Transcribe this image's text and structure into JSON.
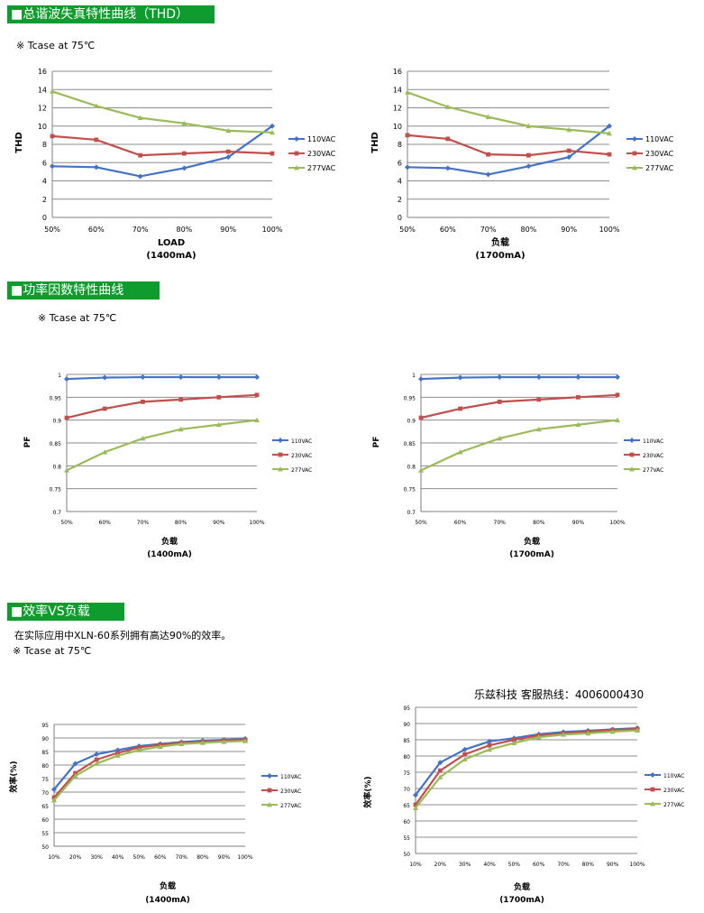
{
  "sections": {
    "thd": {
      "header": "■总谐波失真特性曲线（THD）",
      "note": "※ Tcase at 75℃"
    },
    "pf": {
      "header": "■功率因数特性曲线",
      "note": "※ Tcase at 75℃"
    },
    "eff": {
      "header": "■效率VS负载",
      "description": "在实际应用中XLN-60系列拥有高达90%的效率。",
      "note": "※ Tcase at 75℃"
    }
  },
  "hotline": "乐兹科技 客服热线：4006000430",
  "colors": {
    "header_bg": "#0e9c2e",
    "s110": "#4472c4",
    "s230": "#c0504d",
    "s277": "#9bbb59"
  },
  "chart_data": [
    {
      "id": "thd-1400",
      "type": "line",
      "ylabel": "THD",
      "xlabel": "LOAD",
      "sublabel": "(1400mA)",
      "categories": [
        "50%",
        "60%",
        "70%",
        "80%",
        "90%",
        "100%"
      ],
      "ylim": [
        0,
        16
      ],
      "yticks": [
        0,
        2,
        4,
        6,
        8,
        10,
        12,
        14,
        16
      ],
      "ytick_labels": [
        "0",
        "2",
        "4",
        "6",
        "8",
        "10",
        "12",
        "14",
        "16"
      ],
      "grid": true,
      "legend": "right",
      "series": [
        {
          "name": "110VAC",
          "marker": "diamond",
          "values": [
            5.6,
            5.5,
            4.5,
            5.4,
            6.6,
            10.0
          ]
        },
        {
          "name": "230VAC",
          "marker": "square",
          "values": [
            8.9,
            8.5,
            6.8,
            7.0,
            7.2,
            7.0
          ]
        },
        {
          "name": "277VAC",
          "marker": "triangle",
          "values": [
            13.8,
            12.2,
            10.9,
            10.3,
            9.5,
            9.3
          ]
        }
      ]
    },
    {
      "id": "thd-1700",
      "type": "line",
      "ylabel": "THD",
      "xlabel": "负载",
      "sublabel": "(1700mA)",
      "categories": [
        "50%",
        "60%",
        "70%",
        "80%",
        "90%",
        "100%"
      ],
      "ylim": [
        0,
        16
      ],
      "yticks": [
        0,
        2,
        4,
        6,
        8,
        10,
        12,
        14,
        16
      ],
      "ytick_labels": [
        "0",
        "2",
        "4",
        "6",
        "8",
        "10",
        "12",
        "14",
        "16"
      ],
      "grid": true,
      "legend": "right",
      "series": [
        {
          "name": "110VAC",
          "marker": "diamond",
          "values": [
            5.5,
            5.4,
            4.7,
            5.6,
            6.6,
            10.0
          ]
        },
        {
          "name": "230VAC",
          "marker": "square",
          "values": [
            9.0,
            8.6,
            6.9,
            6.8,
            7.3,
            6.9
          ]
        },
        {
          "name": "277VAC",
          "marker": "triangle",
          "values": [
            13.7,
            12.1,
            11.0,
            10.0,
            9.6,
            9.2
          ]
        }
      ]
    },
    {
      "id": "pf-1400",
      "type": "line",
      "ylabel": "PF",
      "xlabel": "负载",
      "sublabel": "(1400mA)",
      "categories": [
        "50%",
        "60%",
        "70%",
        "80%",
        "90%",
        "100%"
      ],
      "ylim": [
        0.7,
        1.0
      ],
      "yticks": [
        0.7,
        0.75,
        0.8,
        0.85,
        0.9,
        0.95,
        1.0
      ],
      "ytick_labels": [
        "0.7",
        "0.75",
        "0.8",
        "0.85",
        "0.9",
        "0.95",
        "1"
      ],
      "grid": true,
      "legend": "right",
      "series": [
        {
          "name": "110VAC",
          "marker": "diamond",
          "values": [
            0.99,
            0.993,
            0.994,
            0.994,
            0.994,
            0.994
          ]
        },
        {
          "name": "230VAC",
          "marker": "square",
          "values": [
            0.905,
            0.925,
            0.94,
            0.945,
            0.95,
            0.955
          ]
        },
        {
          "name": "277VAC",
          "marker": "triangle",
          "values": [
            0.79,
            0.83,
            0.86,
            0.88,
            0.89,
            0.9
          ]
        }
      ]
    },
    {
      "id": "pf-1700",
      "type": "line",
      "ylabel": "PF",
      "xlabel": "负载",
      "sublabel": "(1700mA)",
      "categories": [
        "50%",
        "60%",
        "70%",
        "80%",
        "90%",
        "100%"
      ],
      "ylim": [
        0.7,
        1.0
      ],
      "yticks": [
        0.7,
        0.75,
        0.8,
        0.85,
        0.9,
        0.95,
        1.0
      ],
      "ytick_labels": [
        "0.7",
        "0.75",
        "0.8",
        "0.85",
        "0.9",
        "0.95",
        "1"
      ],
      "grid": true,
      "legend": "right",
      "series": [
        {
          "name": "110VAC",
          "marker": "diamond",
          "values": [
            0.99,
            0.993,
            0.994,
            0.994,
            0.994,
            0.994
          ]
        },
        {
          "name": "230VAC",
          "marker": "square",
          "values": [
            0.905,
            0.925,
            0.94,
            0.945,
            0.95,
            0.955
          ]
        },
        {
          "name": "277VAC",
          "marker": "triangle",
          "values": [
            0.79,
            0.83,
            0.86,
            0.88,
            0.89,
            0.9
          ]
        }
      ]
    },
    {
      "id": "eff-1400",
      "type": "line",
      "ylabel": "效率(%)",
      "xlabel": "负载",
      "sublabel": "(1400mA)",
      "categories": [
        "10%",
        "20%",
        "30%",
        "40%",
        "50%",
        "60%",
        "70%",
        "80%",
        "90%",
        "100%"
      ],
      "ylim": [
        50,
        95
      ],
      "yticks": [
        50,
        55,
        60,
        65,
        70,
        75,
        80,
        85,
        90,
        95
      ],
      "ytick_labels": [
        "50",
        "55",
        "60",
        "65",
        "70",
        "75",
        "80",
        "85",
        "90",
        "95"
      ],
      "grid": true,
      "legend": "right",
      "series": [
        {
          "name": "110VAC",
          "marker": "diamond",
          "values": [
            71,
            80.5,
            84,
            85.5,
            87,
            87.8,
            88.5,
            89,
            89.3,
            89.7
          ]
        },
        {
          "name": "230VAC",
          "marker": "square",
          "values": [
            68,
            77,
            82,
            84.5,
            86.5,
            87.5,
            88.2,
            88.6,
            89,
            89.3
          ]
        },
        {
          "name": "277VAC",
          "marker": "triangle",
          "values": [
            67,
            76,
            80.5,
            83.5,
            85.5,
            86.8,
            87.8,
            88.2,
            88.6,
            88.9
          ]
        }
      ]
    },
    {
      "id": "eff-1700",
      "type": "line",
      "ylabel": "效率(%)",
      "xlabel": "负载",
      "sublabel": "(1700mA)",
      "categories": [
        "10%",
        "20%",
        "30%",
        "40%",
        "50%",
        "60%",
        "70%",
        "80%",
        "90%",
        "100%"
      ],
      "ylim": [
        50,
        95
      ],
      "yticks": [
        50,
        55,
        60,
        65,
        70,
        75,
        80,
        85,
        90,
        95
      ],
      "ytick_labels": [
        "50",
        "55",
        "60",
        "65",
        "70",
        "75",
        "80",
        "85",
        "90",
        "95"
      ],
      "grid": true,
      "legend": "right",
      "series": [
        {
          "name": "110VAC",
          "marker": "diamond",
          "values": [
            68,
            78,
            82,
            84.5,
            85.5,
            86.7,
            87.4,
            87.8,
            88.2,
            88.6
          ]
        },
        {
          "name": "230VAC",
          "marker": "square",
          "values": [
            65,
            75.5,
            80.5,
            83.3,
            85,
            86.3,
            87,
            87.5,
            88,
            88.3
          ]
        },
        {
          "name": "277VAC",
          "marker": "triangle",
          "values": [
            64,
            73.5,
            79,
            82,
            84,
            85.8,
            86.6,
            87,
            87.5,
            87.9
          ]
        }
      ]
    }
  ]
}
